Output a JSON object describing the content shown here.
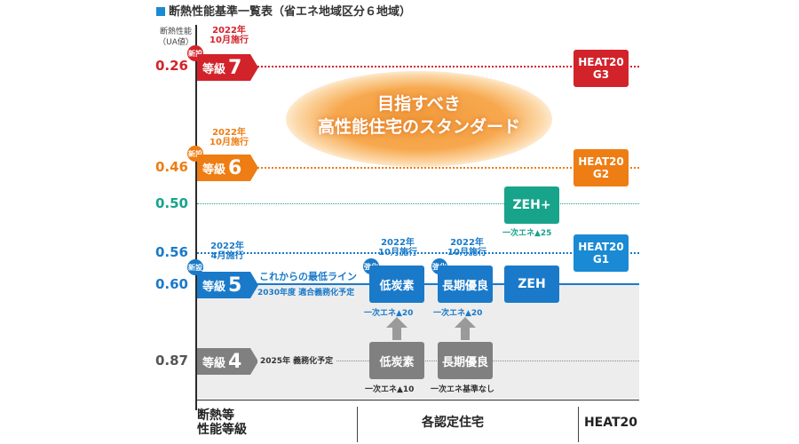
{
  "title": "断熱性能基準一覧表（省エネ地域区分６地域）",
  "yaxis_header": [
    "断熱性能",
    "（UA値）"
  ],
  "center_message": [
    "目指すべき",
    "高性能住宅のスタンダード"
  ],
  "colors": {
    "grade7": "#d2232a",
    "grade6": "#ee7d13",
    "zehplus": "#17a48b",
    "blue": "#1a7ac9",
    "grade4": "#808080",
    "shade": "#ededed"
  },
  "chart_data": {
    "type": "table",
    "title": "断熱性能基準一覧表（省エネ地域区分６地域）",
    "yaxis": "断熱性能（UA値）",
    "rows": [
      {
        "ua": "0.26",
        "grade": "等級",
        "num": "7",
        "badge": "新設",
        "date": [
          "2022年",
          "10月施行"
        ],
        "heat20": [
          "HEAT20",
          "G3"
        ]
      },
      {
        "ua": "0.46",
        "grade": "等級",
        "num": "6",
        "badge": "新設",
        "date": [
          "2022年",
          "10月施行"
        ],
        "heat20": [
          "HEAT20",
          "G2"
        ]
      },
      {
        "ua": "0.50",
        "zeh_plus": "ZEH+",
        "zeh_plus_note": "一次エネ▲25"
      },
      {
        "ua": "0.56",
        "heat20": [
          "HEAT20",
          "G1"
        ]
      },
      {
        "ua": "0.60",
        "grade": "等級",
        "num": "5",
        "badge": "新設",
        "date": [
          "2022年",
          "4月施行"
        ],
        "note1": "これからの最低ライン",
        "note2": "2030年度 適合義務化予定",
        "certs": [
          {
            "badge": "強化",
            "date": [
              "2022年",
              "10月施行"
            ],
            "label": "低炭素",
            "note": "一次エネ▲20"
          },
          {
            "badge": "強化",
            "date": [
              "2022年",
              "10月施行"
            ],
            "label": "長期優良",
            "note": "一次エネ▲20"
          },
          {
            "label": "ZEH"
          }
        ]
      },
      {
        "ua": "0.87",
        "grade": "等級",
        "num": "4",
        "note1": "2025年 義務化予定",
        "certs": [
          {
            "label": "低炭素",
            "note": "一次エネ▲10"
          },
          {
            "label": "長期優良",
            "note": "一次エネ基準なし"
          }
        ]
      }
    ],
    "columns": [
      {
        "label": [
          "断熱等",
          "性能等級"
        ]
      },
      {
        "label": [
          "各認定住宅"
        ]
      },
      {
        "label": [
          "HEAT20"
        ]
      }
    ]
  }
}
